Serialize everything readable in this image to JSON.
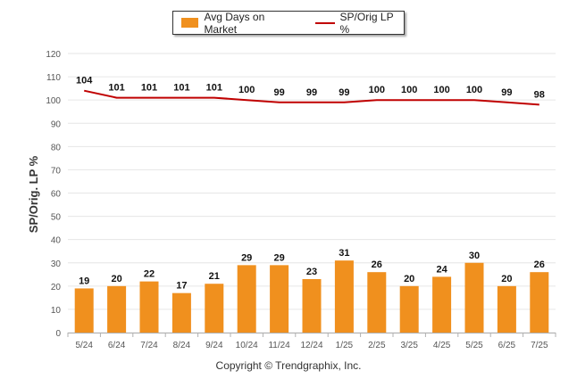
{
  "chart_data": {
    "type": "bar",
    "categories": [
      "5/24",
      "6/24",
      "7/24",
      "8/24",
      "9/24",
      "10/24",
      "11/24",
      "12/24",
      "1/25",
      "2/25",
      "3/25",
      "4/25",
      "5/25",
      "6/25",
      "7/25"
    ],
    "series": [
      {
        "name": "Avg Days on Market",
        "type": "bar",
        "color": "#f0901e",
        "values": [
          19,
          20,
          22,
          17,
          21,
          29,
          29,
          23,
          31,
          26,
          20,
          24,
          30,
          20,
          26
        ]
      },
      {
        "name": "SP/Orig LP %",
        "type": "line",
        "color": "#c00000",
        "values": [
          104,
          101,
          101,
          101,
          101,
          100,
          99,
          99,
          99,
          100,
          100,
          100,
          100,
          99,
          98
        ]
      }
    ],
    "ylabel": "SP/Orig. LP %",
    "xlabel": "",
    "ylim": [
      0,
      120
    ],
    "yticks": [
      0,
      10,
      20,
      30,
      40,
      50,
      60,
      70,
      80,
      90,
      100,
      110,
      120
    ],
    "grid": true,
    "legend_position": "top-center"
  },
  "legend": {
    "bar_label": "Avg Days on Market",
    "line_label": "SP/Orig LP %"
  },
  "footer": {
    "copyright": "Copyright © Trendgraphix, Inc."
  }
}
